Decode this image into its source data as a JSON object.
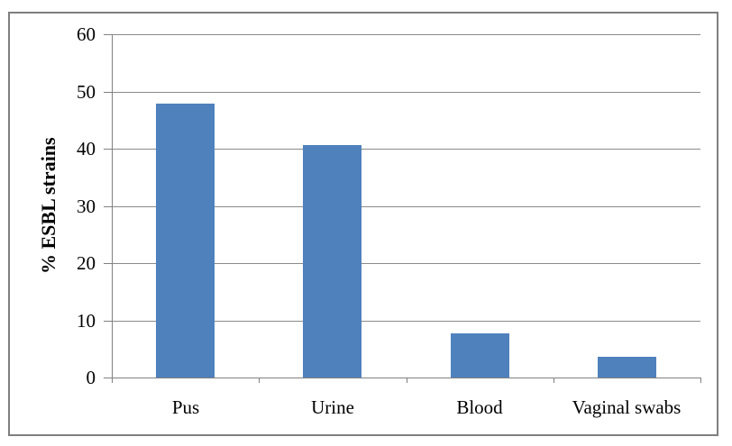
{
  "chart_data": {
    "type": "bar",
    "categories": [
      "Pus",
      "Urine",
      "Blood",
      "Vaginal swabs"
    ],
    "values": [
      47.8,
      40.7,
      7.7,
      3.6
    ],
    "title": "",
    "xlabel": "",
    "ylabel": "% ESBL strains",
    "ylim": [
      0,
      60
    ],
    "yticks": [
      0,
      10,
      20,
      30,
      40,
      50,
      60
    ],
    "grid": "horizontal-major",
    "legend": "none",
    "colors": {
      "bar": "#4F81BD",
      "gridline": "#8a8a8a",
      "axis": "#808080",
      "frame_border": "#7f7f7f",
      "text": "#000000",
      "background": "#ffffff"
    }
  }
}
